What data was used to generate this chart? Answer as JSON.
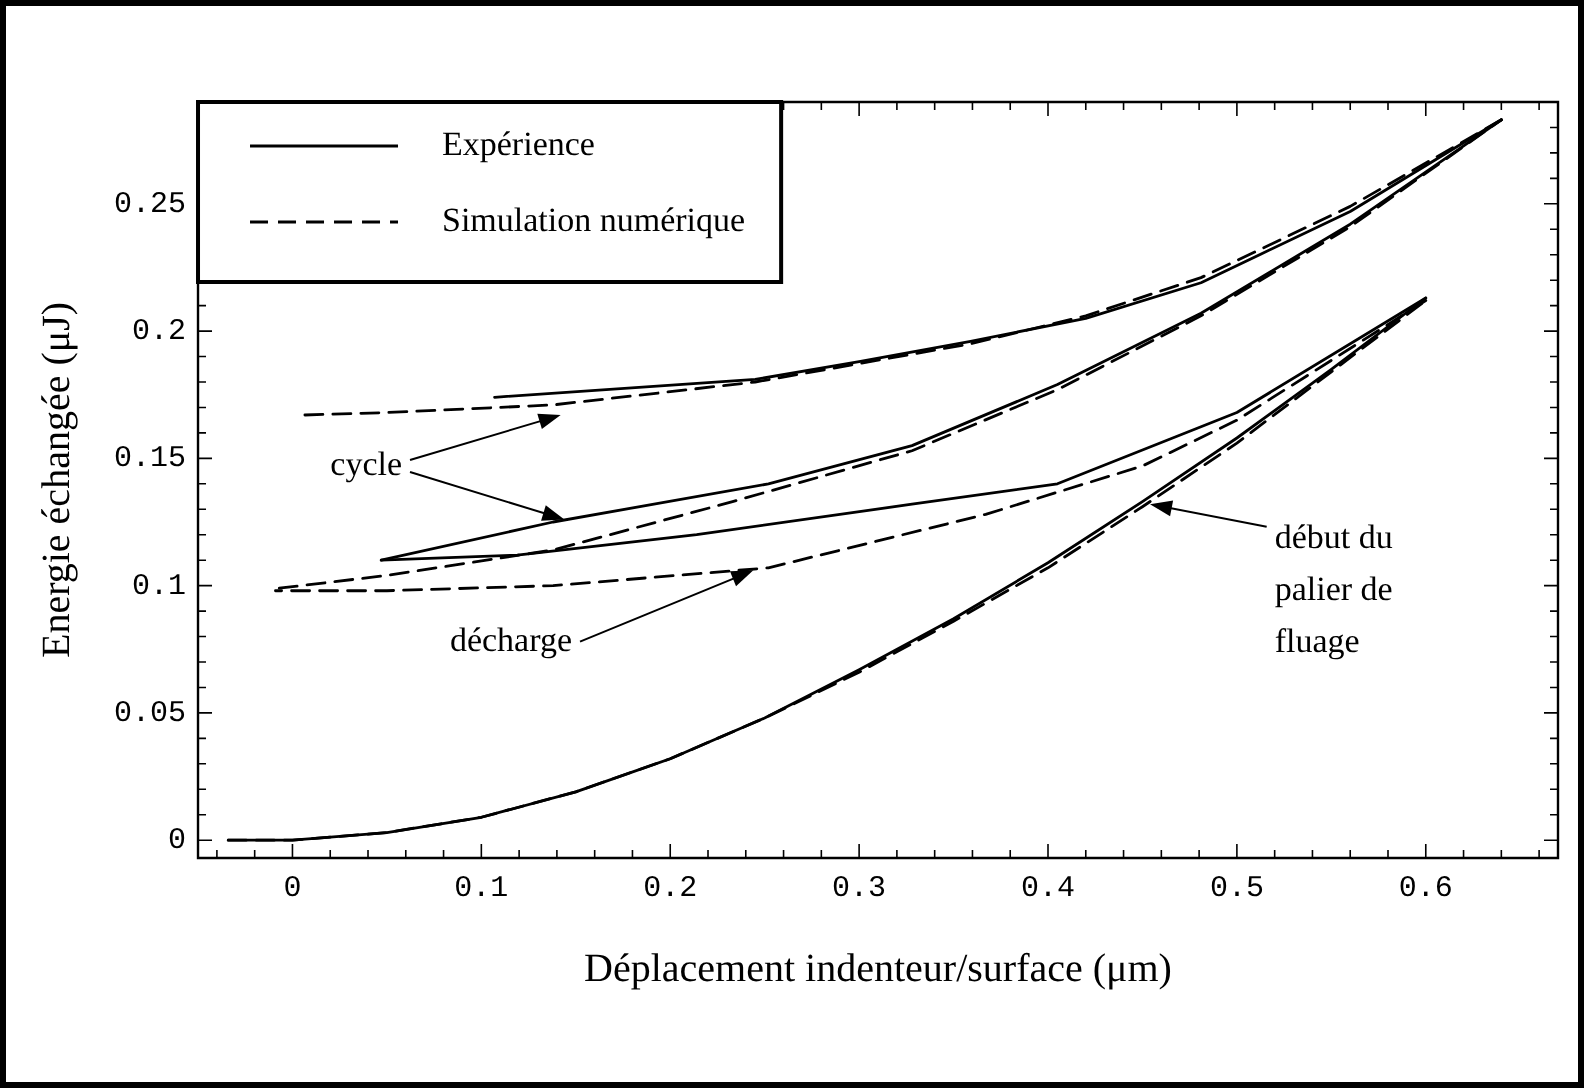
{
  "chart_data": {
    "type": "line",
    "xlabel": "Déplacement indenteur/surface (μm)",
    "ylabel": "Energie échangée (μJ)",
    "xlim": [
      -0.05,
      0.67
    ],
    "xticks": [
      0,
      0.1,
      0.2,
      0.3,
      0.4,
      0.5,
      0.6
    ],
    "ylim": [
      -0.007,
      0.29
    ],
    "yticks": [
      0,
      0.05,
      0.1,
      0.15,
      0.2,
      0.25
    ],
    "grid": false,
    "legend": "top left",
    "marker": "none",
    "series": [
      {
        "name": "Expérience",
        "color": "#000000",
        "line_style": "solid",
        "x": [
          -0.034,
          0,
          0.05,
          0.1,
          0.15,
          0.2,
          0.25,
          0.3,
          0.35,
          0.4,
          0.45,
          0.5,
          0.55,
          0.6
        ],
        "values": [
          0,
          0,
          0.003,
          0.009,
          0.019,
          0.032,
          0.048,
          0.067,
          0.087,
          0.109,
          0.133,
          0.158,
          0.185,
          0.213
        ]
      },
      {
        "name": "Simulation numérique",
        "color": "#000000",
        "line_style": "dashed",
        "x": [
          -0.034,
          0,
          0.05,
          0.1,
          0.15,
          0.2,
          0.25,
          0.3,
          0.35,
          0.4,
          0.45,
          0.5,
          0.55,
          0.6
        ],
        "values": [
          0,
          0,
          0.003,
          0.009,
          0.019,
          0.032,
          0.048,
          0.066,
          0.086,
          0.107,
          0.131,
          0.156,
          0.184,
          0.212
        ]
      },
      {
        "color": "#000000",
        "line_style": "solid",
        "x": [
          0.6,
          0.5,
          0.405,
          0.328,
          0.214,
          0.119,
          0.047
        ],
        "values": [
          0.213,
          0.168,
          0.14,
          0.132,
          0.12,
          0.112,
          0.11
        ]
      },
      {
        "color": "#000000",
        "line_style": "dashed",
        "x": [
          0.6,
          0.5,
          0.45,
          0.367,
          0.252,
          0.138,
          0.05,
          -0.009
        ],
        "values": [
          0.212,
          0.165,
          0.147,
          0.128,
          0.107,
          0.1,
          0.098,
          0.098
        ]
      },
      {
        "color": "#000000",
        "line_style": "solid",
        "x": [
          0.047,
          0.138,
          0.252,
          0.328,
          0.405,
          0.481,
          0.56,
          0.64
        ],
        "values": [
          0.11,
          0.125,
          0.14,
          0.155,
          0.179,
          0.207,
          0.242,
          0.283
        ]
      },
      {
        "color": "#000000",
        "line_style": "dashed",
        "x": [
          -0.007,
          0.05,
          0.138,
          0.233,
          0.328,
          0.405,
          0.481,
          0.56,
          0.64
        ],
        "values": [
          0.099,
          0.104,
          0.114,
          0.133,
          0.153,
          0.177,
          0.206,
          0.241,
          0.283
        ]
      },
      {
        "color": "#000000",
        "line_style": "solid",
        "x": [
          0.64,
          0.56,
          0.481,
          0.42,
          0.359,
          0.3,
          0.245,
          0.107
        ],
        "values": [
          0.283,
          0.247,
          0.219,
          0.205,
          0.196,
          0.188,
          0.181,
          0.174
        ]
      },
      {
        "color": "#000000",
        "line_style": "dashed",
        "x": [
          0.64,
          0.56,
          0.481,
          0.42,
          0.359,
          0.245,
          0.138,
          0.05,
          0.005
        ],
        "values": [
          0.283,
          0.249,
          0.221,
          0.206,
          0.195,
          0.18,
          0.171,
          0.168,
          0.167
        ]
      }
    ],
    "annotations": [
      {
        "text": "cycle",
        "x": 0.142,
        "y": 0.167
      },
      {
        "text": "décharge",
        "x": 0.244,
        "y": 0.106
      },
      {
        "text": "début du palier de fluage",
        "x": 0.454,
        "y": 0.132
      }
    ]
  }
}
